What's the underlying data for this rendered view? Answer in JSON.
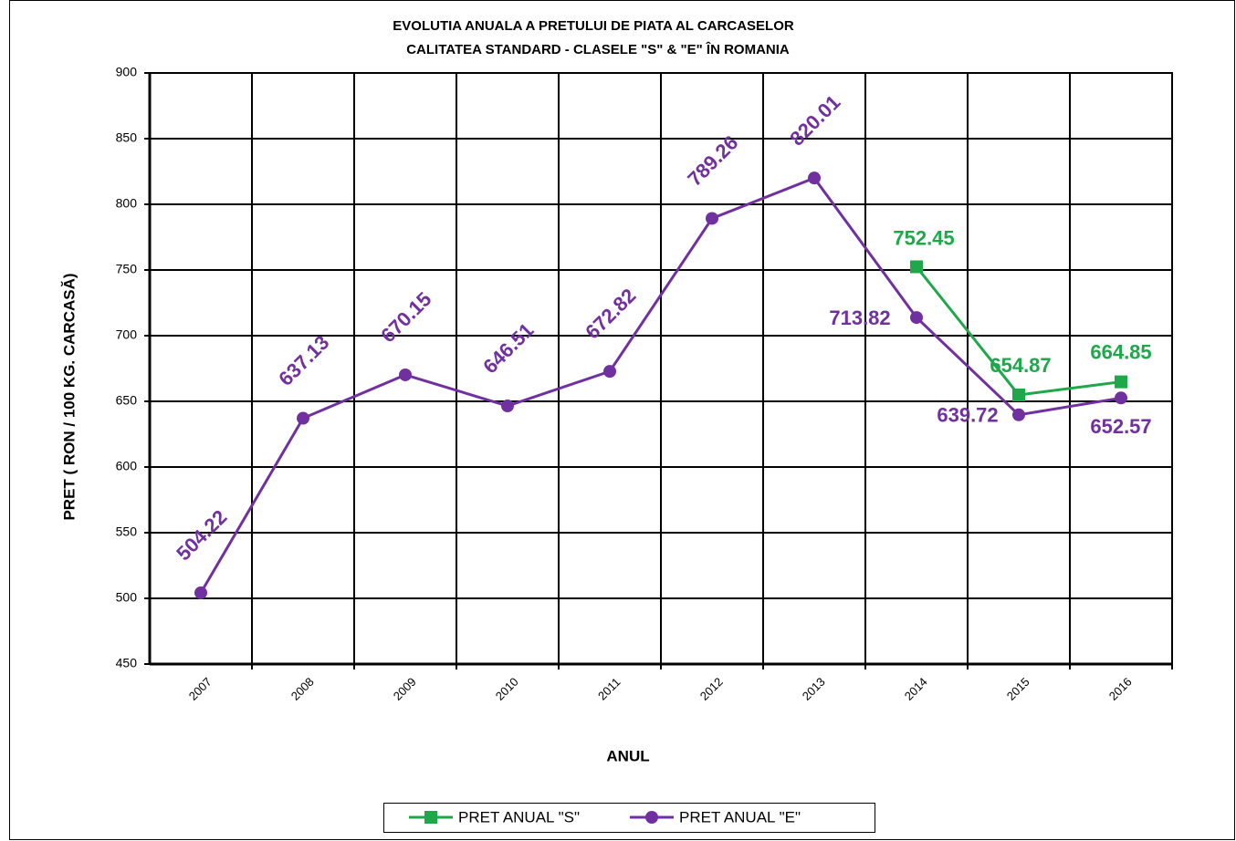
{
  "chart_data": {
    "type": "line",
    "title": [
      "EVOLUTIA ANUALA  A  PRETULUI  DE PIATA   AL CARCASELOR",
      "CALITATEA STANDARD - CLASELE \"S\" & \"E\" ÎN ROMANIA"
    ],
    "x_label": "ANUL",
    "y_label": "PRET ( RON / 100 KG. CARCASĂ)",
    "categories": [
      "2007",
      "2008",
      "2009",
      "2010",
      "2011",
      "2012",
      "2013",
      "2014",
      "2015",
      "2016"
    ],
    "series": [
      {
        "name": "PRET ANUAL \"S\"",
        "color": "#1fa84a",
        "marker": "square",
        "values": [
          null,
          null,
          null,
          null,
          null,
          null,
          null,
          752.45,
          654.87,
          664.85
        ]
      },
      {
        "name": "PRET ANUAL \"E\"",
        "color": "#7030a0",
        "marker": "circle",
        "values": [
          504.22,
          637.13,
          670.15,
          646.51,
          672.82,
          789.26,
          820.01,
          713.82,
          639.72,
          652.57
        ]
      }
    ],
    "ylim": [
      450,
      900
    ],
    "yticks": [
      450,
      500,
      550,
      600,
      650,
      700,
      750,
      800,
      850,
      900
    ],
    "grid": true,
    "legend": "bottom"
  }
}
